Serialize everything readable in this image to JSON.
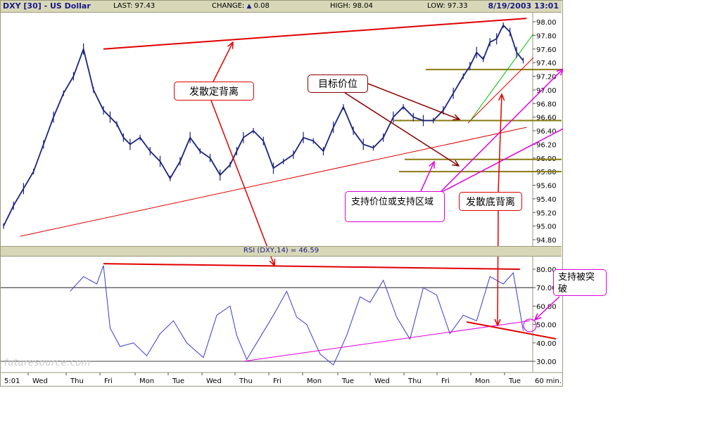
{
  "header": {
    "symbol": "DXY [30] - US Dollar",
    "last": "LAST: 97.43",
    "change_label": "CHANGE:",
    "change_value": "0.08",
    "high": "HIGH: 98.04",
    "low": "LOW: 97.33",
    "datetime": "8/19/2003 13:01"
  },
  "rsi_header": "RSI (DXY,14) = 46.59",
  "watermark": "futuresource.com",
  "annotations": {
    "divergence_top": "发散定背离",
    "target_price": "目标价位",
    "support_zone": "支持价位或支持区域",
    "divergence_bottom": "发散底背离",
    "support_broken": "支持被突破"
  },
  "colors": {
    "price_line": "#1a237e",
    "rsi_line": "#3a3ad0",
    "red_annotation": "#e00000",
    "dark_red_annotation": "#8b0000",
    "magenta_annotation": "#e000e0",
    "olive_support": "#8a7a10",
    "green_trend": "#00c000"
  },
  "chart_data": [
    {
      "type": "line",
      "title": "DXY [30] - US Dollar",
      "y_axis_side": "right",
      "ylim": [
        94.8,
        98.1
      ],
      "y_ticks": [
        98.0,
        97.8,
        97.6,
        97.4,
        97.2,
        97.0,
        96.8,
        96.6,
        96.4,
        96.2,
        96.0,
        95.8,
        95.6,
        95.4,
        95.2,
        95.0,
        94.8
      ],
      "y_tick_labels": [
        "98.00",
        "97.80",
        "97.60",
        "97.40",
        "97.20",
        "97.00",
        "96.80",
        "96.60",
        "96.40",
        "96.20",
        "96.00",
        "95.80",
        "95.60",
        "95.40",
        "95.20",
        "95.00",
        "94.80"
      ],
      "x": [
        0,
        0.3,
        0.6,
        0.9,
        1.2,
        1.5,
        1.8,
        2.1,
        2.4,
        2.7,
        3.0,
        3.2,
        3.4,
        3.6,
        3.8,
        4.1,
        4.4,
        4.7,
        5.0,
        5.3,
        5.6,
        5.9,
        6.2,
        6.5,
        6.8,
        7.0,
        7.2,
        7.5,
        7.8,
        8.1,
        8.4,
        8.7,
        9.0,
        9.3,
        9.6,
        9.9,
        10.2,
        10.5,
        10.8,
        11.1,
        11.4,
        11.7,
        12.0,
        12.3,
        12.6,
        12.9,
        13.2,
        13.5,
        13.8,
        14.0,
        14.2,
        14.4,
        14.6,
        14.8,
        15.0,
        15.2,
        15.4,
        15.6
      ],
      "values": [
        95.0,
        95.3,
        95.55,
        95.8,
        96.2,
        96.6,
        96.95,
        97.2,
        97.6,
        97.0,
        96.7,
        96.6,
        96.5,
        96.3,
        96.2,
        96.3,
        96.1,
        95.95,
        95.7,
        95.95,
        96.3,
        96.1,
        96.0,
        95.75,
        95.9,
        96.1,
        96.3,
        96.4,
        96.25,
        95.85,
        95.95,
        96.05,
        96.3,
        96.25,
        96.1,
        96.45,
        96.75,
        96.4,
        96.2,
        96.15,
        96.3,
        96.6,
        96.75,
        96.6,
        96.55,
        96.55,
        96.7,
        96.95,
        97.2,
        97.35,
        97.55,
        97.45,
        97.7,
        97.75,
        97.95,
        97.85,
        97.55,
        97.43
      ],
      "x_tick_labels": [
        "5:01",
        "Wed",
        "Thu",
        "Fri",
        "Mon",
        "Tue",
        "Wed",
        "Thu",
        "Fri",
        "Mon",
        "Tue",
        "Wed",
        "Thu",
        "Fri",
        "Mon",
        "Tue"
      ],
      "x_unit_label": "60 min.",
      "support_levels": [
        97.3,
        96.55,
        95.98,
        95.8
      ],
      "resistance_line": {
        "from": [
          3.0,
          97.6
        ],
        "to": [
          15.7,
          98.05
        ]
      },
      "trend_line": {
        "from": [
          0.5,
          94.85
        ],
        "to": [
          15.7,
          96.45
        ]
      }
    },
    {
      "type": "line",
      "title": "RSI (DXY,14) = 46.59",
      "y_axis_side": "right",
      "ylim": [
        25,
        85
      ],
      "y_ticks": [
        80,
        70,
        60,
        50,
        40,
        30
      ],
      "y_tick_labels": [
        "80.00",
        "70.00",
        "60.00",
        "50.00",
        "40.00",
        "30.00"
      ],
      "reference_lines": [
        70,
        30
      ],
      "x": [
        2.0,
        2.4,
        2.8,
        3.0,
        3.2,
        3.5,
        3.9,
        4.3,
        4.7,
        5.1,
        5.5,
        6.0,
        6.4,
        6.8,
        7.0,
        7.3,
        7.7,
        8.1,
        8.5,
        8.8,
        9.1,
        9.5,
        9.9,
        10.3,
        10.7,
        11.0,
        11.4,
        11.8,
        12.2,
        12.6,
        13.0,
        13.4,
        13.8,
        14.2,
        14.6,
        15.0,
        15.3,
        15.6
      ],
      "values": [
        68,
        76,
        72,
        82,
        48,
        38,
        40,
        33,
        45,
        52,
        40,
        32,
        55,
        60,
        44,
        31,
        43,
        55,
        68,
        54,
        50,
        34,
        28,
        44,
        65,
        62,
        74,
        54,
        42,
        70,
        66,
        45,
        55,
        52,
        76,
        72,
        78,
        46.59
      ],
      "resistance_line": {
        "from": [
          3.0,
          83
        ],
        "to": [
          15.5,
          80
        ]
      },
      "support_line": {
        "from": [
          7.2,
          30
        ],
        "to": [
          15.8,
          52
        ]
      }
    }
  ]
}
